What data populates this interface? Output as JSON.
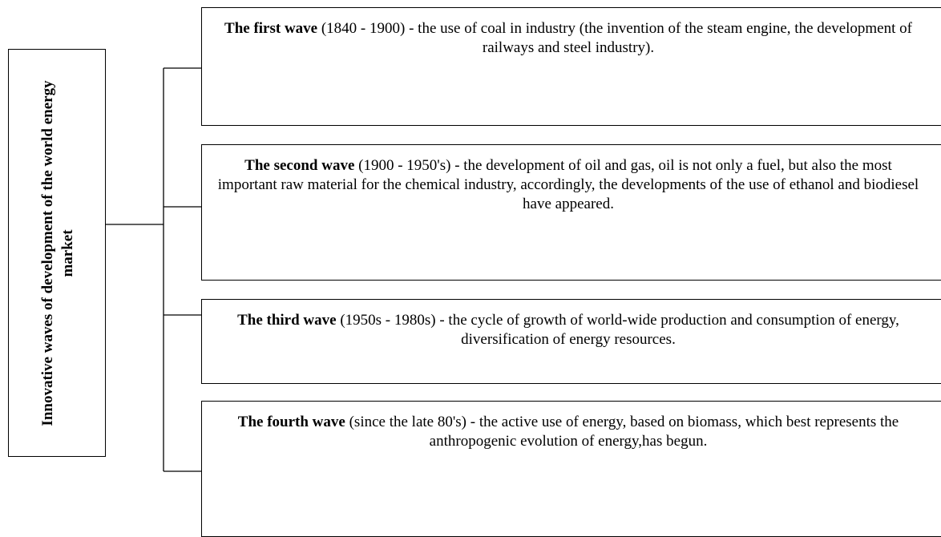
{
  "root": {
    "label": "Innovative waves of development of the world energy market"
  },
  "nodes": [
    {
      "title": "The first wave",
      "text": "(1840 - 1900) - the use of coal in industry (the invention of the steam engine, the development of railways and steel industry)."
    },
    {
      "title": "The second wave",
      "text": "(1900 - 1950's) - the development of oil and gas, oil is not only a fuel, but also the most important raw material for the chemical industry, accordingly, the developments of the use of ethanol and biodiesel have appeared."
    },
    {
      "title": "The third wave",
      "text": "(1950s - 1980s) - the cycle of growth of world-wide production and consumption of energy, diversification of energy resources."
    },
    {
      "title": "The fourth wave",
      "text": "(since the late 80's) - the active use of energy, based on biomass, which best represents the anthropogenic evolution of energy,has begun."
    }
  ]
}
